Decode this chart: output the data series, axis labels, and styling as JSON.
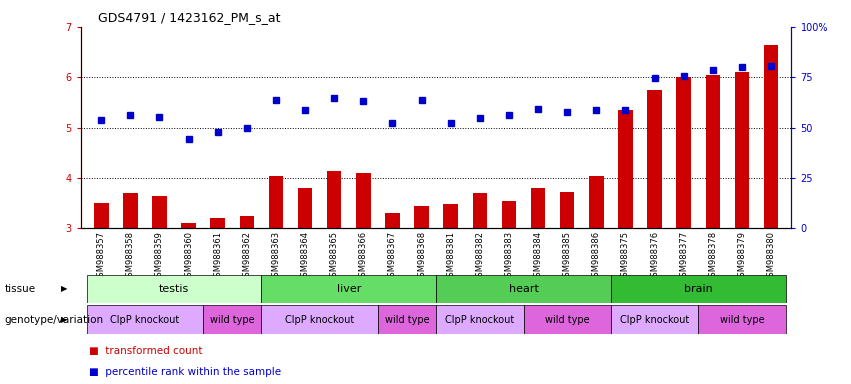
{
  "title": "GDS4791 / 1423162_PM_s_at",
  "samples": [
    "GSM988357",
    "GSM988358",
    "GSM988359",
    "GSM988360",
    "GSM988361",
    "GSM988362",
    "GSM988363",
    "GSM988364",
    "GSM988365",
    "GSM988366",
    "GSM988367",
    "GSM988368",
    "GSM988381",
    "GSM988382",
    "GSM988383",
    "GSM988384",
    "GSM988385",
    "GSM988386",
    "GSM988375",
    "GSM988376",
    "GSM988377",
    "GSM988378",
    "GSM988379",
    "GSM988380"
  ],
  "bar_values": [
    3.5,
    3.7,
    3.65,
    3.1,
    3.2,
    3.25,
    4.05,
    3.8,
    4.15,
    4.1,
    3.3,
    3.45,
    3.48,
    3.7,
    3.55,
    3.8,
    3.72,
    4.05,
    5.35,
    5.75,
    6.0,
    6.05,
    6.1,
    6.65
  ],
  "dot_values": [
    5.15,
    5.25,
    5.22,
    4.78,
    4.92,
    5.0,
    5.55,
    5.35,
    5.58,
    5.52,
    5.1,
    5.55,
    5.1,
    5.2,
    5.25,
    5.38,
    5.32,
    5.35,
    5.35,
    5.98,
    6.02,
    6.15,
    6.2,
    6.22
  ],
  "ylim_left": [
    3,
    7
  ],
  "ylim_right": [
    0,
    100
  ],
  "yticks_left": [
    3,
    4,
    5,
    6,
    7
  ],
  "yticks_right": [
    0,
    25,
    50,
    75,
    100
  ],
  "ytick_labels_right": [
    "0",
    "25",
    "50",
    "75",
    "100%"
  ],
  "bar_color": "#cc0000",
  "dot_color": "#0000cc",
  "bg_color": "#ffffff",
  "plot_bg": "#ffffff",
  "tissue_groups": [
    {
      "label": "testis",
      "start": 0,
      "end": 6,
      "color": "#ccffcc"
    },
    {
      "label": "liver",
      "start": 6,
      "end": 12,
      "color": "#66dd66"
    },
    {
      "label": "heart",
      "start": 12,
      "end": 18,
      "color": "#55cc55"
    },
    {
      "label": "brain",
      "start": 18,
      "end": 24,
      "color": "#33bb33"
    }
  ],
  "genotype_groups": [
    {
      "label": "ClpP knockout",
      "start": 0,
      "end": 4,
      "color": "#ddaaff"
    },
    {
      "label": "wild type",
      "start": 4,
      "end": 6,
      "color": "#dd66dd"
    },
    {
      "label": "ClpP knockout",
      "start": 6,
      "end": 10,
      "color": "#ddaaff"
    },
    {
      "label": "wild type",
      "start": 10,
      "end": 12,
      "color": "#dd66dd"
    },
    {
      "label": "ClpP knockout",
      "start": 12,
      "end": 15,
      "color": "#ddaaff"
    },
    {
      "label": "wild type",
      "start": 15,
      "end": 18,
      "color": "#dd66dd"
    },
    {
      "label": "ClpP knockout",
      "start": 18,
      "end": 21,
      "color": "#ddaaff"
    },
    {
      "label": "wild type",
      "start": 21,
      "end": 24,
      "color": "#dd66dd"
    }
  ],
  "legend_items": [
    {
      "label": "transformed count",
      "color": "#cc0000"
    },
    {
      "label": "percentile rank within the sample",
      "color": "#0000cc"
    }
  ],
  "tissue_label": "tissue",
  "genotype_label": "genotype/variation"
}
